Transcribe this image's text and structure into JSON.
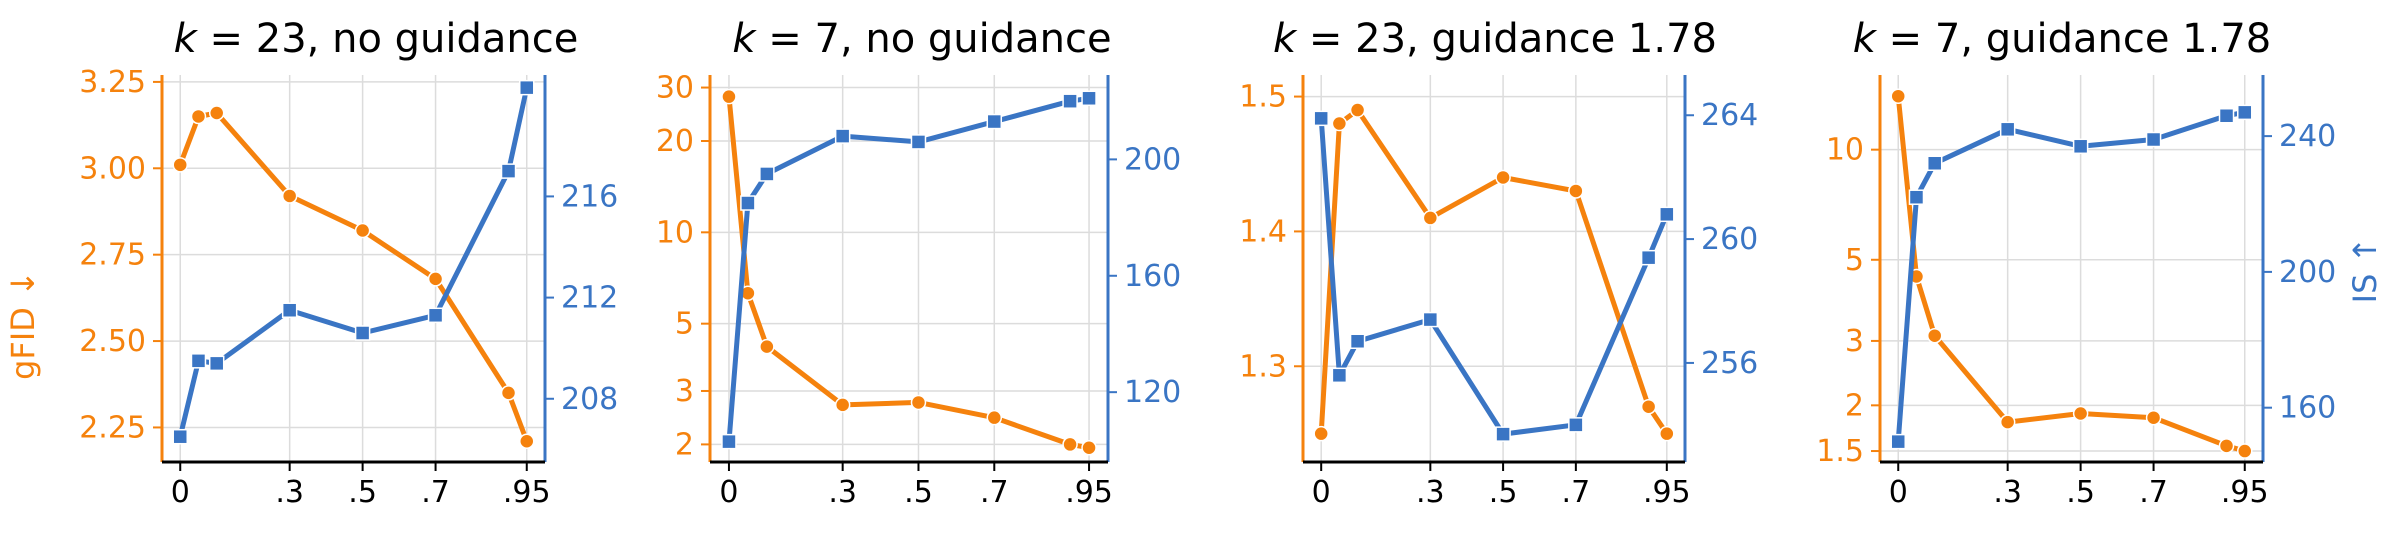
{
  "colors": {
    "gfid": "#f5820d",
    "is": "#3a75c4"
  },
  "axes": {
    "left_label": "gFID ↓",
    "right_label": "IS ↑"
  },
  "chart_data": [
    {
      "type": "line",
      "title_k": "k",
      "title_rest": " = 23, no guidance",
      "x": [
        0,
        0.05,
        0.1,
        0.3,
        0.5,
        0.7,
        0.9,
        0.95
      ],
      "x_ticks": [
        0,
        0.3,
        0.5,
        0.7,
        0.95
      ],
      "x_tick_labels": [
        "0",
        ".3",
        ".5",
        ".7",
        ".95"
      ],
      "xlim": [
        -0.05,
        1.0
      ],
      "left": {
        "scale": "linear",
        "ylim": [
          2.15,
          3.27
        ],
        "ticks": [
          2.25,
          2.5,
          2.75,
          3.0,
          3.25
        ],
        "tick_labels": [
          "2.25",
          "2.50",
          "2.75",
          "3.00",
          "3.25"
        ],
        "values": [
          3.01,
          3.15,
          3.16,
          2.92,
          2.82,
          2.68,
          2.35,
          2.21
        ]
      },
      "right": {
        "scale": "linear",
        "ylim": [
          205.5,
          220.8
        ],
        "ticks": [
          208,
          212,
          216
        ],
        "tick_labels": [
          "208",
          "212",
          "216"
        ],
        "values": [
          206.5,
          209.5,
          209.4,
          211.5,
          210.6,
          211.3,
          217.0,
          220.3
        ]
      }
    },
    {
      "type": "line",
      "title_k": "k",
      "title_rest": " = 7, no guidance",
      "x": [
        0,
        0.05,
        0.1,
        0.3,
        0.5,
        0.7,
        0.9,
        0.95
      ],
      "x_ticks": [
        0,
        0.3,
        0.5,
        0.7,
        0.95
      ],
      "x_tick_labels": [
        "0",
        ".3",
        ".5",
        ".7",
        ".95"
      ],
      "xlim": [
        -0.05,
        1.0
      ],
      "left": {
        "scale": "log",
        "ylim": [
          1.75,
          33
        ],
        "ticks": [
          2,
          3,
          5,
          10,
          20,
          30
        ],
        "tick_labels": [
          "2",
          "3",
          "5",
          "10",
          "20",
          "30"
        ],
        "values": [
          28,
          6.3,
          4.2,
          2.7,
          2.75,
          2.45,
          2.0,
          1.95
        ]
      },
      "right": {
        "scale": "linear",
        "ylim": [
          96,
          229
        ],
        "ticks": [
          120,
          160,
          200
        ],
        "tick_labels": [
          "120",
          "160",
          "200"
        ],
        "values": [
          103,
          185,
          195,
          208,
          206,
          213,
          220,
          221
        ]
      }
    },
    {
      "type": "line",
      "title_k": "k",
      "title_rest": " = 23, guidance 1.78",
      "x": [
        0,
        0.05,
        0.1,
        0.3,
        0.5,
        0.7,
        0.9,
        0.95
      ],
      "x_ticks": [
        0,
        0.3,
        0.5,
        0.7,
        0.95
      ],
      "x_tick_labels": [
        "0",
        ".3",
        ".5",
        ".7",
        ".95"
      ],
      "xlim": [
        -0.05,
        1.0
      ],
      "left": {
        "scale": "linear",
        "ylim": [
          1.229,
          1.516
        ],
        "ticks": [
          1.3,
          1.4,
          1.5
        ],
        "tick_labels": [
          "1.3",
          "1.4",
          "1.5"
        ],
        "values": [
          1.25,
          1.48,
          1.49,
          1.41,
          1.44,
          1.43,
          1.27,
          1.25
        ]
      },
      "right": {
        "scale": "linear",
        "ylim": [
          252.8,
          265.3
        ],
        "ticks": [
          256,
          260,
          264
        ],
        "tick_labels": [
          "256",
          "260",
          "264"
        ],
        "values": [
          263.9,
          255.6,
          256.7,
          257.4,
          253.7,
          254.0,
          259.4,
          260.8
        ]
      }
    },
    {
      "type": "line",
      "title_k": "k",
      "title_rest": " = 7, guidance 1.78",
      "x": [
        0,
        0.05,
        0.1,
        0.3,
        0.5,
        0.7,
        0.9,
        0.95
      ],
      "x_ticks": [
        0,
        0.3,
        0.5,
        0.7,
        0.95
      ],
      "x_tick_labels": [
        "0",
        ".3",
        ".5",
        ".7",
        ".95"
      ],
      "xlim": [
        -0.05,
        1.0
      ],
      "left": {
        "scale": "log",
        "ylim": [
          1.4,
          16
        ],
        "ticks": [
          1.5,
          2,
          3,
          5,
          10
        ],
        "tick_labels": [
          "1.5",
          "2",
          "3",
          "5",
          "10"
        ],
        "values": [
          14,
          4.5,
          3.1,
          1.8,
          1.9,
          1.85,
          1.55,
          1.5
        ]
      },
      "right": {
        "scale": "linear",
        "ylim": [
          144,
          258
        ],
        "ticks": [
          160,
          200,
          240
        ],
        "tick_labels": [
          "160",
          "200",
          "240"
        ],
        "values": [
          150,
          222,
          232,
          242,
          237,
          239,
          246,
          247
        ]
      }
    }
  ]
}
